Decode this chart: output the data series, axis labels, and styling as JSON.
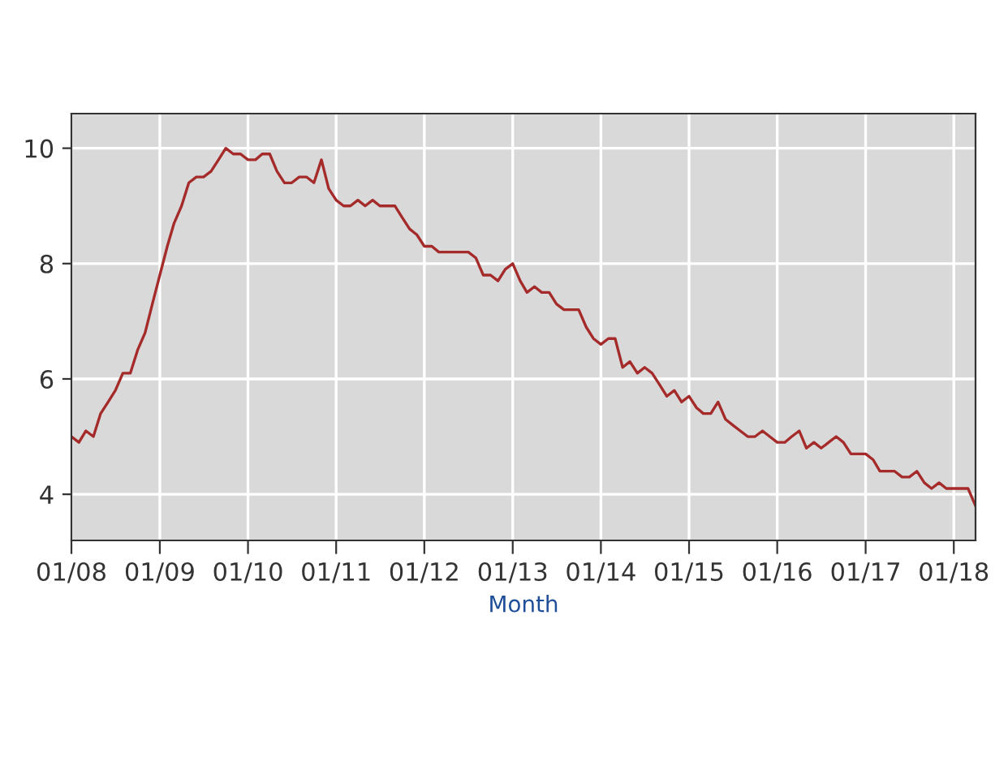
{
  "chart_data": {
    "type": "line",
    "xlabel": "Month",
    "x": [
      "2008-01",
      "2008-02",
      "2008-03",
      "2008-04",
      "2008-05",
      "2008-06",
      "2008-07",
      "2008-08",
      "2008-09",
      "2008-10",
      "2008-11",
      "2008-12",
      "2009-01",
      "2009-02",
      "2009-03",
      "2009-04",
      "2009-05",
      "2009-06",
      "2009-07",
      "2009-08",
      "2009-09",
      "2009-10",
      "2009-11",
      "2009-12",
      "2010-01",
      "2010-02",
      "2010-03",
      "2010-04",
      "2010-05",
      "2010-06",
      "2010-07",
      "2010-08",
      "2010-09",
      "2010-10",
      "2010-11",
      "2010-12",
      "2011-01",
      "2011-02",
      "2011-03",
      "2011-04",
      "2011-05",
      "2011-06",
      "2011-07",
      "2011-08",
      "2011-09",
      "2011-10",
      "2011-11",
      "2011-12",
      "2012-01",
      "2012-02",
      "2012-03",
      "2012-04",
      "2012-05",
      "2012-06",
      "2012-07",
      "2012-08",
      "2012-09",
      "2012-10",
      "2012-11",
      "2012-12",
      "2013-01",
      "2013-02",
      "2013-03",
      "2013-04",
      "2013-05",
      "2013-06",
      "2013-07",
      "2013-08",
      "2013-09",
      "2013-10",
      "2013-11",
      "2013-12",
      "2014-01",
      "2014-02",
      "2014-03",
      "2014-04",
      "2014-05",
      "2014-06",
      "2014-07",
      "2014-08",
      "2014-09",
      "2014-10",
      "2014-11",
      "2014-12",
      "2015-01",
      "2015-02",
      "2015-03",
      "2015-04",
      "2015-05",
      "2015-06",
      "2015-07",
      "2015-08",
      "2015-09",
      "2015-10",
      "2015-11",
      "2015-12",
      "2016-01",
      "2016-02",
      "2016-03",
      "2016-04",
      "2016-05",
      "2016-06",
      "2016-07",
      "2016-08",
      "2016-09",
      "2016-10",
      "2016-11",
      "2016-12",
      "2017-01",
      "2017-02",
      "2017-03",
      "2017-04",
      "2017-05",
      "2017-06",
      "2017-07",
      "2017-08",
      "2017-09",
      "2017-10",
      "2017-11",
      "2017-12",
      "2018-01",
      "2018-02",
      "2018-03",
      "2018-04"
    ],
    "series": [
      {
        "color": "#a52a2a",
        "values": [
          5.0,
          4.9,
          5.1,
          5.0,
          5.4,
          5.6,
          5.8,
          6.1,
          6.1,
          6.5,
          6.8,
          7.3,
          7.8,
          8.3,
          8.7,
          9.0,
          9.4,
          9.5,
          9.5,
          9.6,
          9.8,
          10.0,
          9.9,
          9.9,
          9.8,
          9.8,
          9.9,
          9.9,
          9.6,
          9.4,
          9.4,
          9.5,
          9.5,
          9.4,
          9.8,
          9.3,
          9.1,
          9.0,
          9.0,
          9.1,
          9.0,
          9.1,
          9.0,
          9.0,
          9.0,
          8.8,
          8.6,
          8.5,
          8.3,
          8.3,
          8.2,
          8.2,
          8.2,
          8.2,
          8.2,
          8.1,
          7.8,
          7.8,
          7.7,
          7.9,
          8.0,
          7.7,
          7.5,
          7.6,
          7.5,
          7.5,
          7.3,
          7.2,
          7.2,
          7.2,
          6.9,
          6.7,
          6.6,
          6.7,
          6.7,
          6.2,
          6.3,
          6.1,
          6.2,
          6.1,
          5.9,
          5.7,
          5.8,
          5.6,
          5.7,
          5.5,
          5.4,
          5.4,
          5.6,
          5.3,
          5.2,
          5.1,
          5.0,
          5.0,
          5.1,
          5.0,
          4.9,
          4.9,
          5.0,
          5.1,
          4.8,
          4.9,
          4.8,
          4.9,
          5.0,
          4.9,
          4.7,
          4.7,
          4.7,
          4.6,
          4.4,
          4.4,
          4.4,
          4.3,
          4.3,
          4.4,
          4.2,
          4.1,
          4.2,
          4.1,
          4.1,
          4.1,
          4.1,
          3.8
        ]
      }
    ],
    "xlim": [
      "2008-01",
      "2018-04"
    ],
    "xticks": [
      {
        "value": "2008-01",
        "label": "01/08"
      },
      {
        "value": "2009-01",
        "label": "01/09"
      },
      {
        "value": "2010-01",
        "label": "01/10"
      },
      {
        "value": "2011-01",
        "label": "01/11"
      },
      {
        "value": "2012-01",
        "label": "01/12"
      },
      {
        "value": "2013-01",
        "label": "01/13"
      },
      {
        "value": "2014-01",
        "label": "01/14"
      },
      {
        "value": "2015-01",
        "label": "01/15"
      },
      {
        "value": "2016-01",
        "label": "01/16"
      },
      {
        "value": "2017-01",
        "label": "01/17"
      },
      {
        "value": "2018-01",
        "label": "01/18"
      }
    ],
    "ylim": [
      3.2,
      10.6
    ],
    "yticks": [
      4,
      6,
      8,
      10
    ],
    "grid": true,
    "line_style": "solid",
    "marker": "none"
  }
}
